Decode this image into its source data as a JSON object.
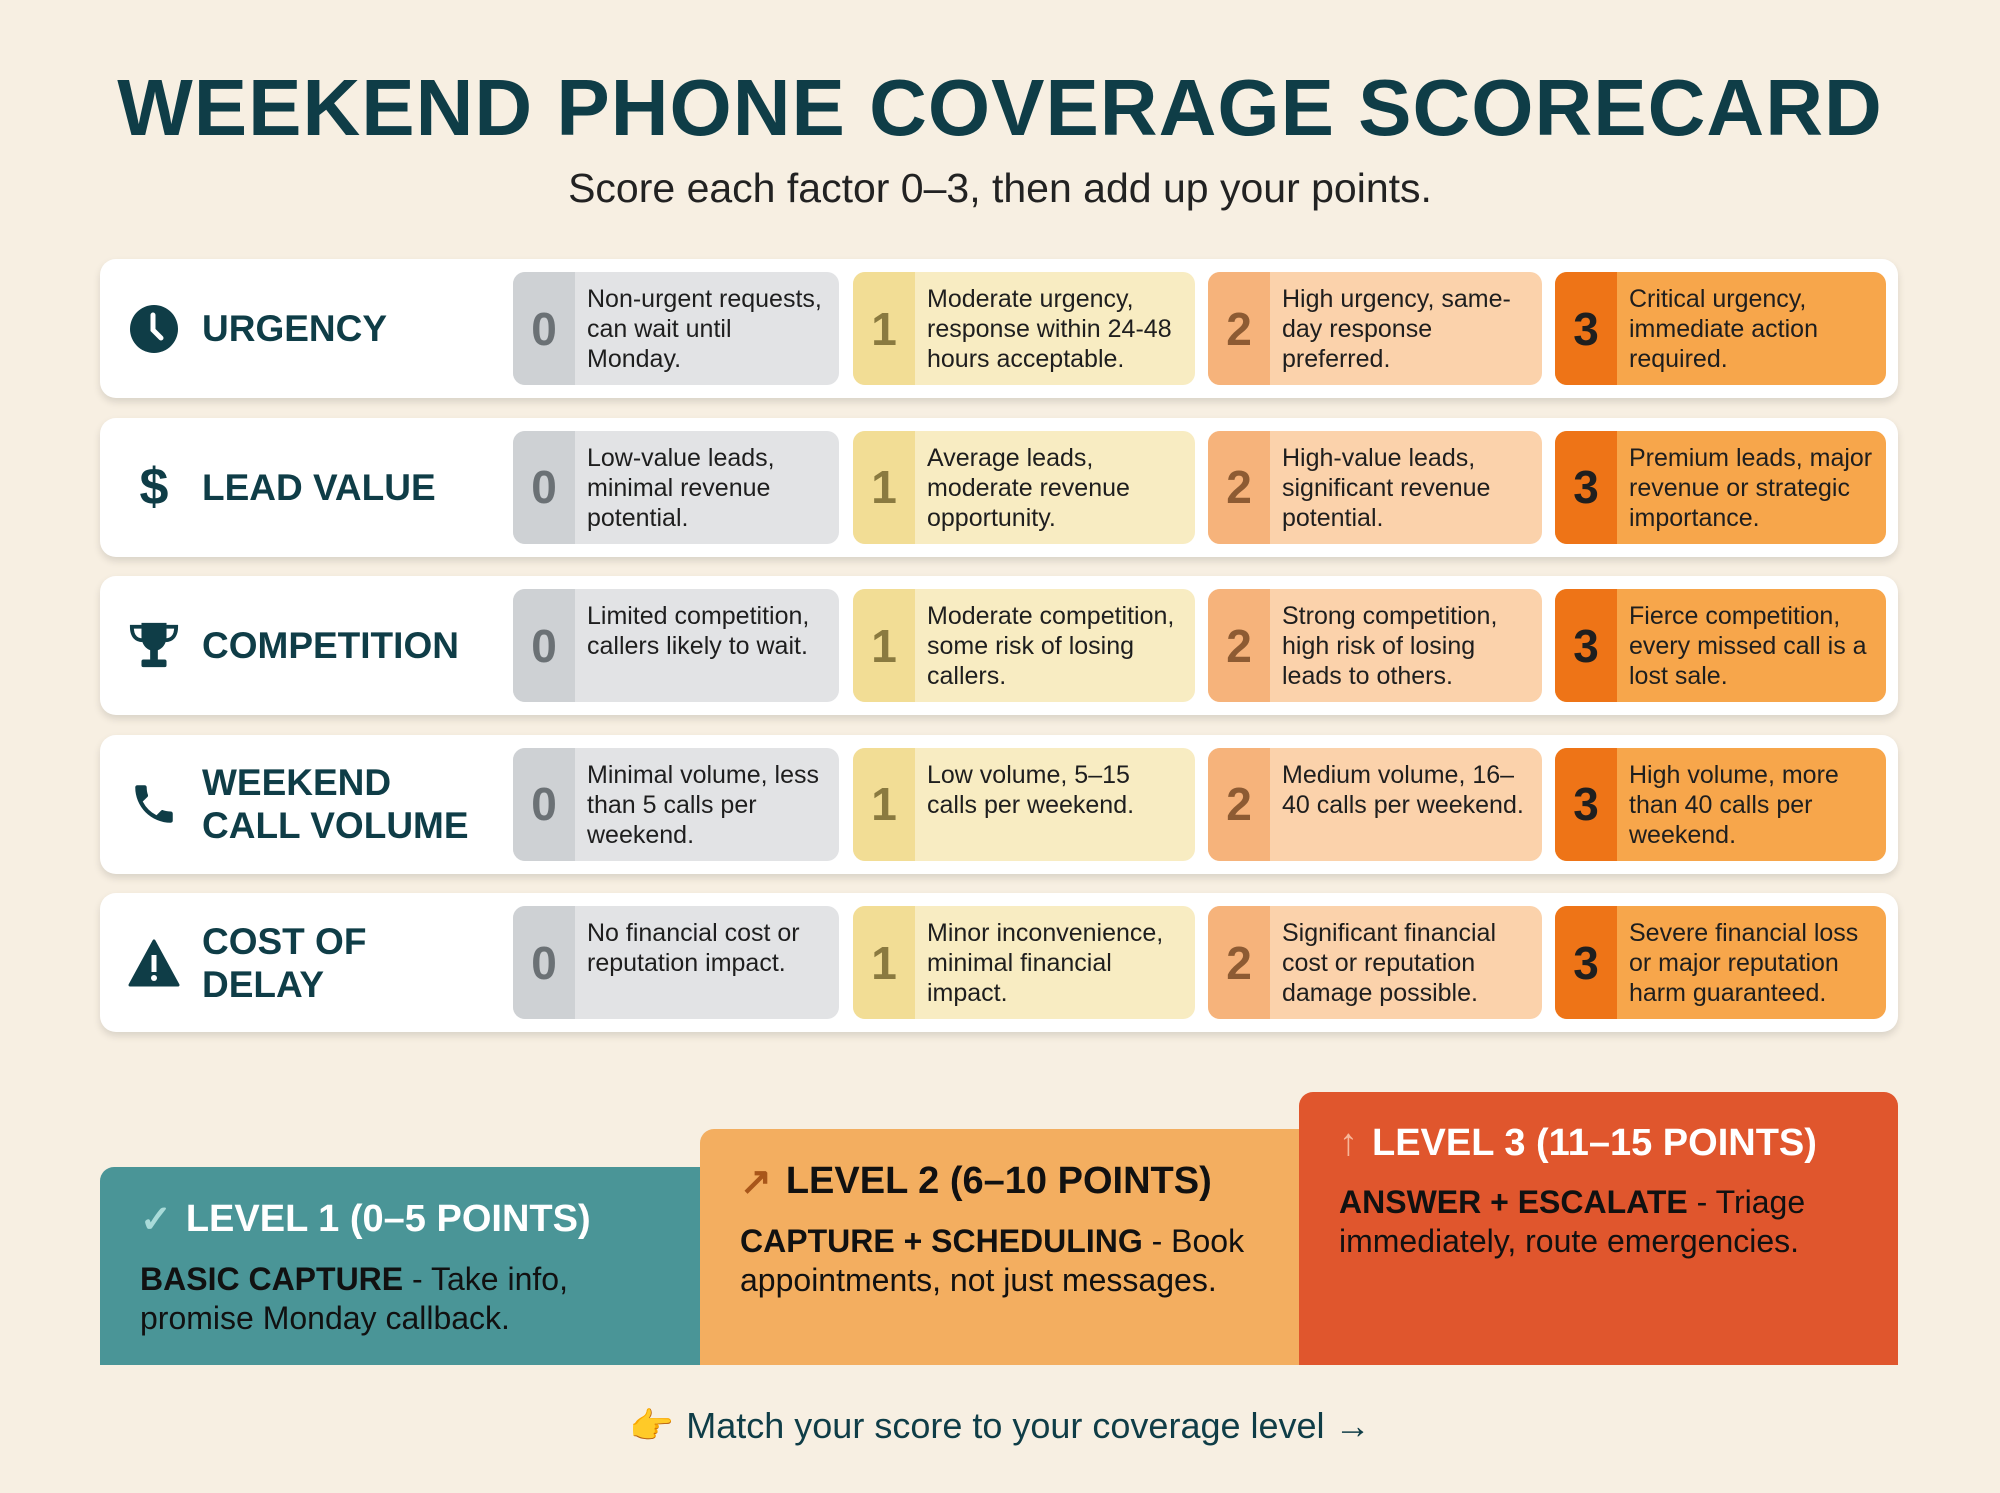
{
  "title": "WEEKEND PHONE COVERAGE SCORECARD",
  "subtitle": "Score each factor 0–3, then add up your points.",
  "factors": [
    {
      "label": "Urgency",
      "icon": "clock-icon",
      "scores": [
        "Non-urgent requests, can wait until Monday.",
        "Moderate urgency, response within 24-48 hours acceptable.",
        "High urgency, same-day response preferred.",
        "Critical urgency, immediate action required."
      ]
    },
    {
      "label": "Lead Value",
      "icon": "dollar-icon",
      "scores": [
        "Low-value leads, minimal revenue potential.",
        "Average leads, moderate revenue opportunity.",
        "High-value leads, significant revenue potential.",
        "Premium leads, major revenue or strategic importance."
      ]
    },
    {
      "label": "Competition",
      "icon": "trophy-icon",
      "scores": [
        "Limited competition, callers likely to wait.",
        "Moderate competition, some risk of losing callers.",
        "Strong competition, high risk of losing leads to others.",
        "Fierce competition, every missed call is a lost sale."
      ]
    },
    {
      "label": "Weekend Call Volume",
      "icon": "phone-icon",
      "scores": [
        "Minimal volume, less than 5 calls per weekend.",
        "Low volume, 5–15 calls per weekend.",
        "Medium volume, 16–40 calls per weekend.",
        "High volume, more than 40 calls per weekend."
      ]
    },
    {
      "label": "Cost of Delay",
      "icon": "warning-icon",
      "scores": [
        "No financial cost or reputation impact.",
        "Minor inconvenience, minimal financial impact.",
        "Significant financial cost or reputation damage possible.",
        "Severe financial loss or major reputation harm guaranteed."
      ]
    }
  ],
  "score_numbers": [
    "0",
    "1",
    "2",
    "3"
  ],
  "levels": [
    {
      "icon": "✓",
      "title": "LEVEL 1 (0–5 POINTS)",
      "bold": "BASIC CAPTURE",
      "text": " - Take info, promise Monday callback.",
      "color": "#4a9597"
    },
    {
      "icon": "↗",
      "title": "LEVEL 2 (6–10 POINTS)",
      "bold": "CAPTURE + SCHEDULING",
      "text": " - Book appointments, not just messages.",
      "color": "#f3ae60"
    },
    {
      "icon": "↑",
      "title": "LEVEL 3 (11–15 POINTS)",
      "bold": "ANSWER + ESCALATE",
      "text": " - Triage immediately, route emergencies.",
      "color": "#e0562d"
    }
  ],
  "footer": {
    "icon": "👉",
    "text": "Match your score to your coverage level →"
  }
}
